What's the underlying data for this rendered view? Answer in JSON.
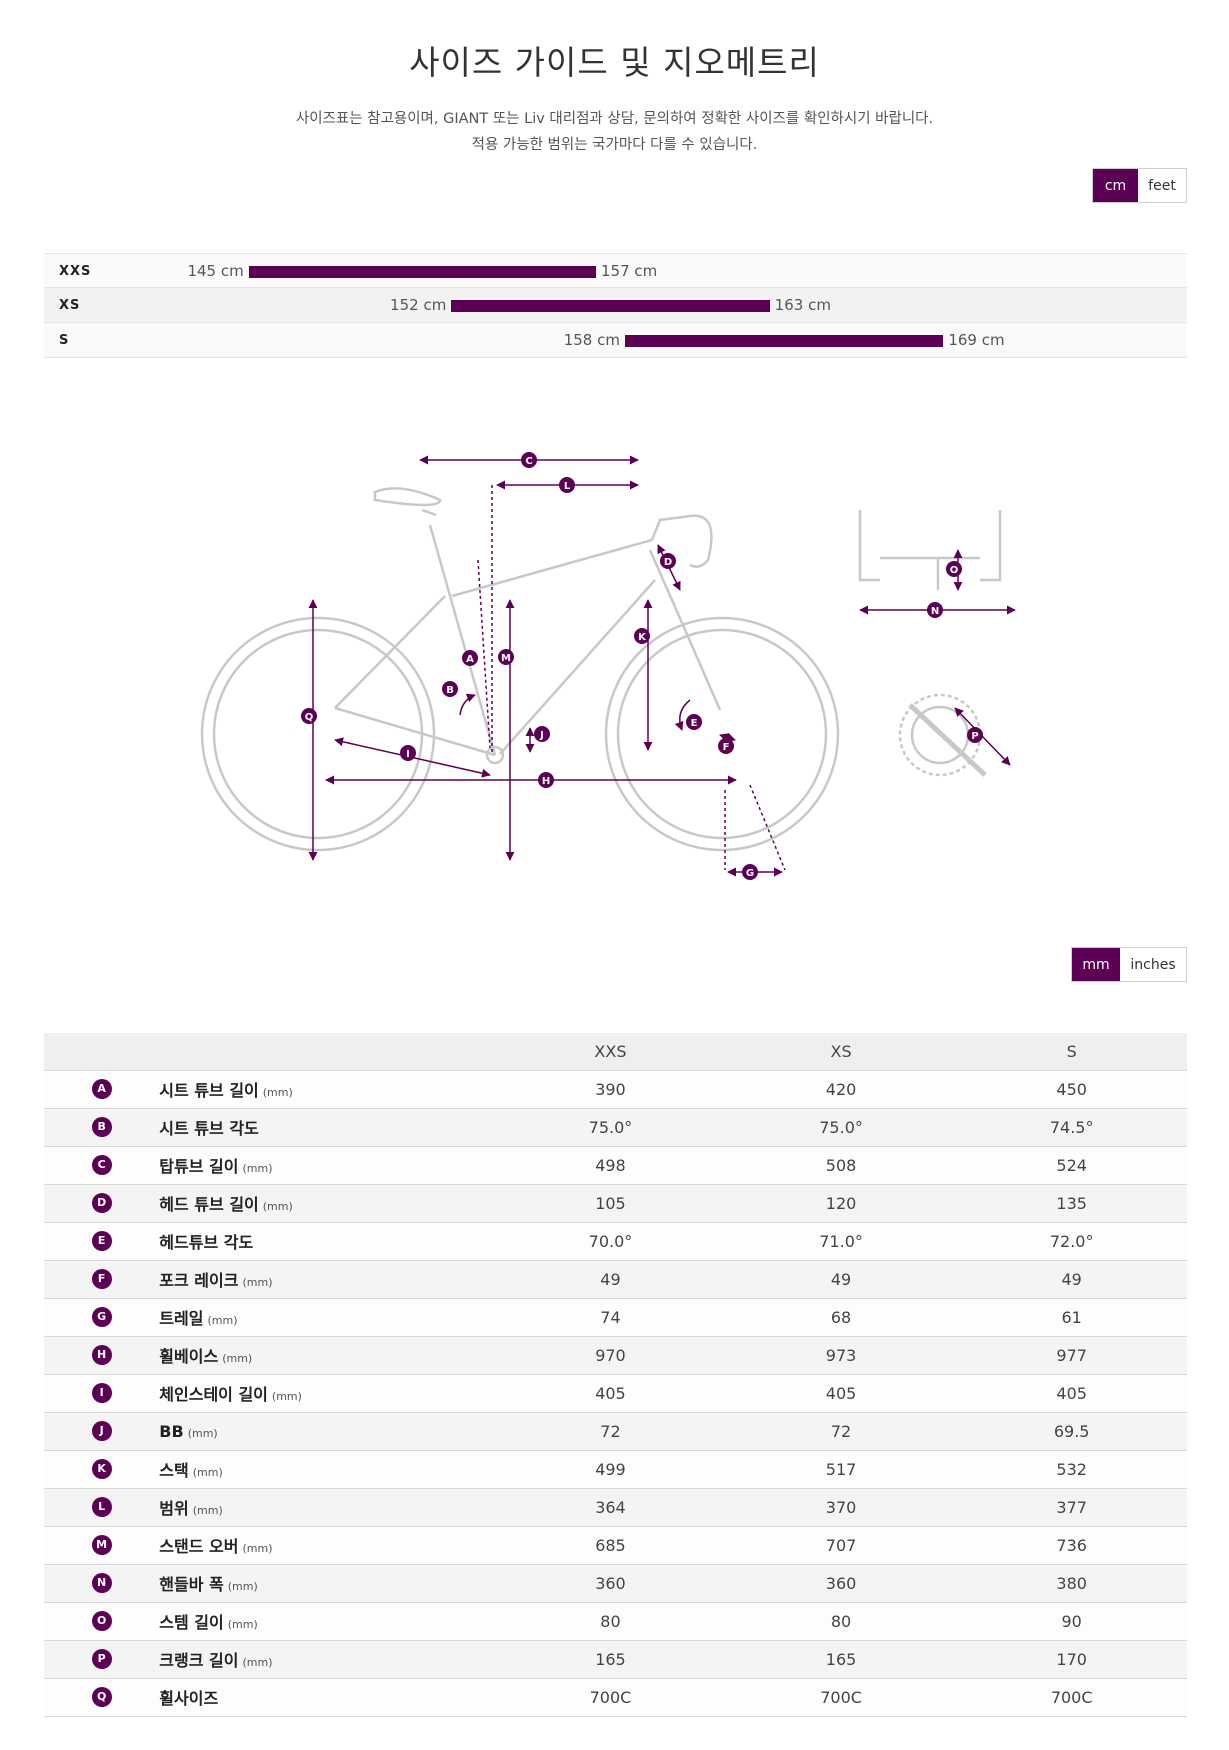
{
  "page": {
    "title": "사이즈 가이드 및 지오메트리",
    "description_line1": "사이즈표는 참고용이며, GIANT 또는 Liv 대리점과 상담, 문의하여 정확한 사이즈를 확인하시기 바랍니다.",
    "description_line2": "적용 가능한 범위는 국가마다 다를 수 있습니다."
  },
  "unit_toggle": {
    "options": [
      "cm",
      "feet"
    ],
    "selected": "cm"
  },
  "size_chart": {
    "rows": [
      {
        "size": "XXS",
        "min": 145,
        "max": 157,
        "min_label": "145 cm",
        "max_label": "157 cm"
      },
      {
        "size": "XS",
        "min": 152,
        "max": 163,
        "min_label": "152 cm",
        "max_label": "163 cm"
      },
      {
        "size": "S",
        "min": 158,
        "max": 169,
        "min_label": "158 cm",
        "max_label": "169 cm"
      }
    ]
  },
  "geometry_unit_toggle": {
    "options": [
      "mm",
      "inches"
    ],
    "selected": "mm"
  },
  "geometry": {
    "headers": [
      "XXS",
      "XS",
      "S"
    ],
    "rows": [
      {
        "badge": "A",
        "name": "시트 튜브 길이",
        "unit": "(mm)",
        "values": [
          "390",
          "420",
          "450"
        ]
      },
      {
        "badge": "B",
        "name": "시트 튜브 각도",
        "unit": "",
        "values": [
          "75.0°",
          "75.0°",
          "74.5°"
        ]
      },
      {
        "badge": "C",
        "name": "탑튜브 길이",
        "unit": "(mm)",
        "values": [
          "498",
          "508",
          "524"
        ]
      },
      {
        "badge": "D",
        "name": "헤드 튜브 길이",
        "unit": "(mm)",
        "values": [
          "105",
          "120",
          "135"
        ]
      },
      {
        "badge": "E",
        "name": "헤드튜브 각도",
        "unit": "",
        "values": [
          "70.0°",
          "71.0°",
          "72.0°"
        ]
      },
      {
        "badge": "F",
        "name": "포크 레이크",
        "unit": "(mm)",
        "values": [
          "49",
          "49",
          "49"
        ]
      },
      {
        "badge": "G",
        "name": "트레일",
        "unit": "(mm)",
        "values": [
          "74",
          "68",
          "61"
        ]
      },
      {
        "badge": "H",
        "name": "휠베이스",
        "unit": "(mm)",
        "values": [
          "970",
          "973",
          "977"
        ]
      },
      {
        "badge": "I",
        "name": "체인스테이 길이",
        "unit": "(mm)",
        "values": [
          "405",
          "405",
          "405"
        ]
      },
      {
        "badge": "J",
        "name": "BB",
        "unit": "(mm)",
        "values": [
          "72",
          "72",
          "69.5"
        ]
      },
      {
        "badge": "K",
        "name": "스택",
        "unit": "(mm)",
        "values": [
          "499",
          "517",
          "532"
        ]
      },
      {
        "badge": "L",
        "name": "범위",
        "unit": "(mm)",
        "values": [
          "364",
          "370",
          "377"
        ]
      },
      {
        "badge": "M",
        "name": "스탠드 오버",
        "unit": "(mm)",
        "values": [
          "685",
          "707",
          "736"
        ]
      },
      {
        "badge": "N",
        "name": "핸들바 폭",
        "unit": "(mm)",
        "values": [
          "360",
          "360",
          "380"
        ]
      },
      {
        "badge": "O",
        "name": "스템 길이",
        "unit": "(mm)",
        "values": [
          "80",
          "80",
          "90"
        ]
      },
      {
        "badge": "P",
        "name": "크랭크 길이",
        "unit": "(mm)",
        "values": [
          "165",
          "165",
          "170"
        ]
      },
      {
        "badge": "Q",
        "name": "휠사이즈",
        "unit": "",
        "values": [
          "700C",
          "700C",
          "700C"
        ]
      }
    ]
  },
  "colors": {
    "accent": "#5c0055",
    "diagram_line": "#c8c8c8"
  }
}
